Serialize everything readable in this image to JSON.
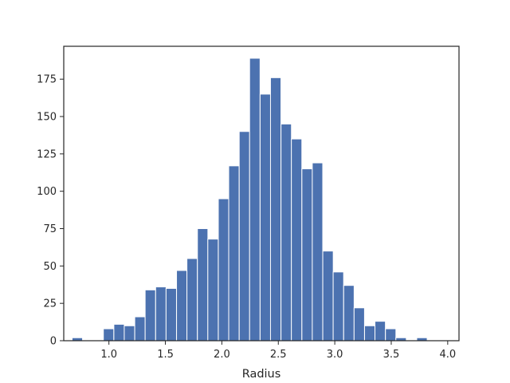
{
  "chart_data": {
    "type": "bar",
    "title": "",
    "xlabel": "Radius",
    "ylabel": "",
    "xlim": [
      0.6,
      4.1
    ],
    "ylim": [
      0,
      197
    ],
    "bin_width": 0.0925,
    "bin_centers": [
      0.72,
      0.812,
      0.905,
      0.997,
      1.09,
      1.182,
      1.275,
      1.367,
      1.46,
      1.552,
      1.645,
      1.737,
      1.83,
      1.922,
      2.015,
      2.107,
      2.2,
      2.292,
      2.385,
      2.477,
      2.57,
      2.662,
      2.755,
      2.847,
      2.94,
      3.032,
      3.125,
      3.217,
      3.31,
      3.402,
      3.495,
      3.587,
      3.68,
      3.772,
      3.865,
      3.957
    ],
    "values": [
      2,
      0,
      0,
      8,
      11,
      10,
      16,
      34,
      36,
      35,
      47,
      55,
      75,
      68,
      95,
      117,
      140,
      189,
      165,
      176,
      145,
      135,
      115,
      119,
      60,
      46,
      37,
      22,
      10,
      13,
      8,
      2,
      0,
      2,
      0,
      0
    ],
    "x_ticks": [
      "1.0",
      "1.5",
      "2.0",
      "2.5",
      "3.0",
      "3.5",
      "4.0"
    ],
    "y_ticks": [
      "0",
      "25",
      "50",
      "75",
      "100",
      "125",
      "150",
      "175"
    ],
    "grid": false,
    "colors": {
      "bar": "#4c72b0",
      "axes": "#262626",
      "background": "#ffffff"
    }
  }
}
